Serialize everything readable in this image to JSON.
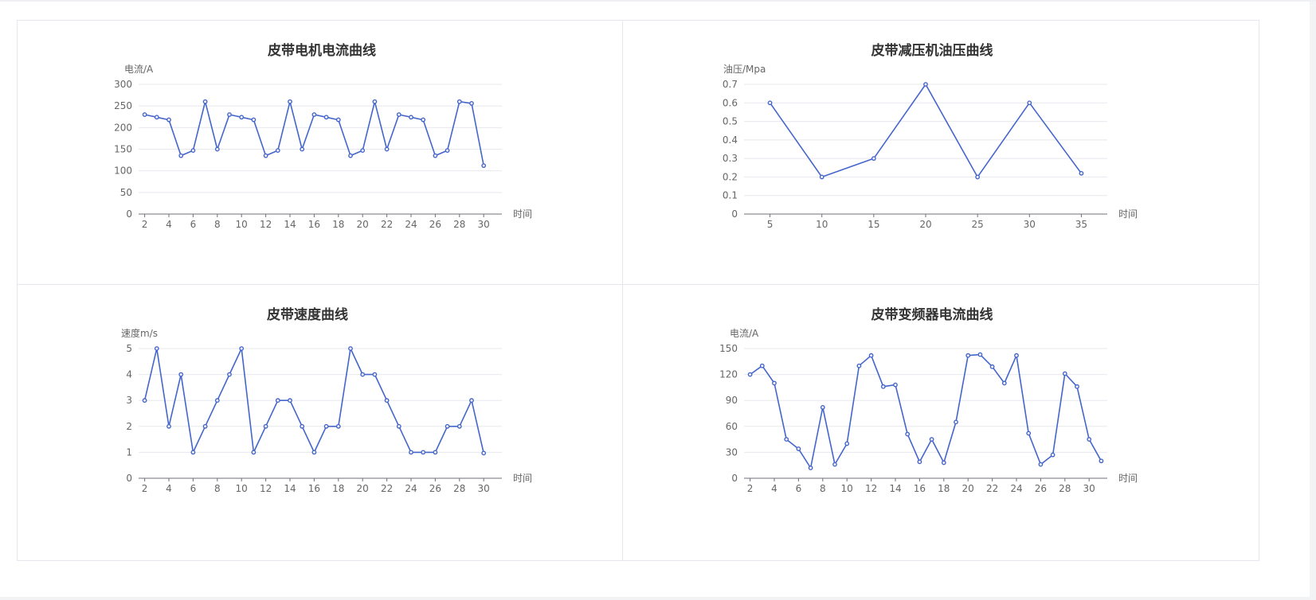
{
  "colors": {
    "line": "#4466cc",
    "grid": "#e6e8ee",
    "axis": "#6e7079",
    "text": "#666666",
    "title": "#333333"
  },
  "chart_data": [
    {
      "type": "line",
      "title": "皮带电机电流曲线",
      "ylabel": "电流/A",
      "xlabel": "时间",
      "ylim": [
        0,
        300
      ],
      "yticks": [
        "0",
        "50",
        "100",
        "150",
        "200",
        "250",
        "300"
      ],
      "xlim": [
        1.5,
        31.5
      ],
      "xticks": [
        "2",
        "4",
        "6",
        "8",
        "10",
        "12",
        "14",
        "16",
        "18",
        "20",
        "22",
        "24",
        "26",
        "28",
        "30"
      ],
      "grid": true,
      "x": [
        2,
        3,
        4,
        5,
        6,
        7,
        8,
        9,
        10,
        11,
        12,
        13,
        14,
        15,
        16,
        17,
        18,
        19,
        20,
        21,
        22,
        23,
        24,
        25,
        26,
        27,
        28,
        29,
        30
      ],
      "values": [
        230,
        224,
        218,
        135,
        147,
        260,
        150,
        230,
        224,
        218,
        135,
        147,
        260,
        150,
        230,
        224,
        218,
        135,
        147,
        260,
        150,
        230,
        224,
        218,
        135,
        147,
        260,
        256,
        112
      ]
    },
    {
      "type": "line",
      "title": "皮带减压机油压曲线",
      "ylabel": "油压/Mpa",
      "xlabel": "时间",
      "ylim": [
        0,
        0.7
      ],
      "yticks": [
        "0",
        "0.1",
        "0.2",
        "0.3",
        "0.4",
        "0.5",
        "0.6",
        "0.7"
      ],
      "xlim": [
        2.5,
        37.5
      ],
      "xticks": [
        "5",
        "10",
        "15",
        "20",
        "25",
        "30",
        "35"
      ],
      "grid": true,
      "x": [
        5,
        10,
        15,
        20,
        25,
        30,
        35
      ],
      "values": [
        0.6,
        0.2,
        0.3,
        0.7,
        0.2,
        0.6,
        0.22
      ]
    },
    {
      "type": "line",
      "title": "皮带速度曲线",
      "ylabel": "速度m/s",
      "xlabel": "时间",
      "ylim": [
        0,
        5
      ],
      "yticks": [
        "0",
        "1",
        "2",
        "3",
        "4",
        "5"
      ],
      "xlim": [
        1.5,
        31.5
      ],
      "xticks": [
        "2",
        "4",
        "6",
        "8",
        "10",
        "12",
        "14",
        "16",
        "18",
        "20",
        "22",
        "24",
        "26",
        "28",
        "30"
      ],
      "grid": true,
      "x": [
        2,
        3,
        4,
        5,
        6,
        7,
        8,
        9,
        10,
        11,
        12,
        13,
        14,
        15,
        16,
        17,
        18,
        19,
        20,
        21,
        22,
        23,
        24,
        25,
        26,
        27,
        28,
        29,
        30
      ],
      "values": [
        3,
        5,
        2,
        4,
        1,
        2,
        3,
        4,
        5,
        1,
        2,
        3,
        3,
        2,
        1,
        2,
        2,
        5,
        4,
        4,
        3,
        2,
        1,
        1,
        1,
        2,
        2,
        3,
        0.97
      ]
    },
    {
      "type": "line",
      "title": "皮带变频器电流曲线",
      "ylabel": "电流/A",
      "xlabel": "时间",
      "ylim": [
        0,
        150
      ],
      "yticks": [
        "0",
        "30",
        "60",
        "90",
        "120",
        "150"
      ],
      "xlim": [
        1.5,
        31.5
      ],
      "xticks": [
        "2",
        "4",
        "6",
        "8",
        "10",
        "12",
        "14",
        "16",
        "18",
        "20",
        "22",
        "24",
        "26",
        "28",
        "30"
      ],
      "grid": true,
      "x": [
        2,
        3,
        4,
        5,
        6,
        7,
        8,
        9,
        10,
        11,
        12,
        13,
        14,
        15,
        16,
        17,
        18,
        19,
        20,
        21,
        22,
        23,
        24,
        25,
        26,
        27,
        28,
        29,
        30,
        31
      ],
      "values": [
        120,
        130,
        110,
        45,
        34,
        12,
        82,
        16,
        40,
        130,
        142,
        106,
        108,
        51,
        19,
        45,
        18,
        65,
        142,
        143,
        129,
        110,
        142,
        52,
        16,
        27,
        121,
        106,
        45,
        20
      ]
    }
  ]
}
